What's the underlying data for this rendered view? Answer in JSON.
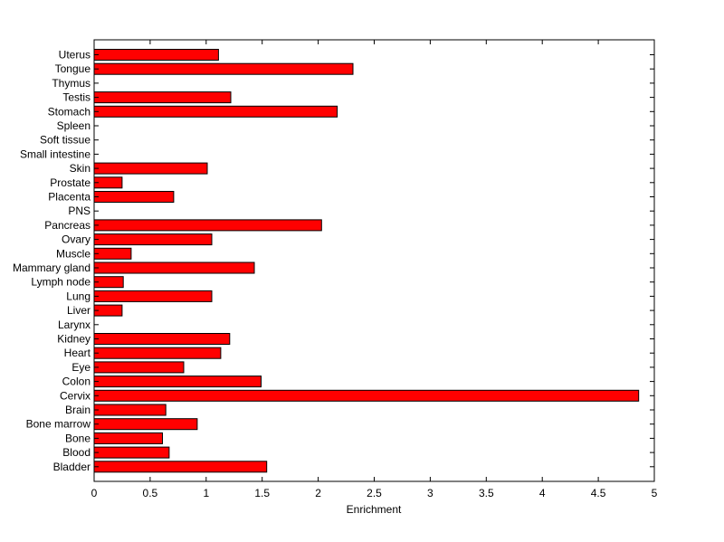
{
  "chart_data": {
    "type": "bar",
    "orientation": "horizontal",
    "title": "",
    "xlabel": "Enrichment",
    "ylabel": "",
    "xlim": [
      0,
      5
    ],
    "xticks": [
      "0",
      "0.5",
      "1",
      "1.5",
      "2",
      "2.5",
      "3",
      "3.5",
      "4",
      "4.5",
      "5"
    ],
    "grid": false,
    "legend": "none",
    "bar_color": "#ff0000",
    "bar_edge_color": "#000000",
    "categories": [
      "Uterus",
      "Tongue",
      "Thymus",
      "Testis",
      "Stomach",
      "Spleen",
      "Soft tissue",
      "Small intestine",
      "Skin",
      "Prostate",
      "Placenta",
      "PNS",
      "Pancreas",
      "Ovary",
      "Muscle",
      "Mammary gland",
      "Lymph node",
      "Lung",
      "Liver",
      "Larynx",
      "Kidney",
      "Heart",
      "Eye",
      "Colon",
      "Cervix",
      "Brain",
      "Bone marrow",
      "Bone",
      "Blood",
      "Bladder"
    ],
    "values": [
      1.11,
      2.31,
      0,
      1.22,
      2.17,
      0,
      0,
      0,
      1.01,
      0.25,
      0.71,
      0,
      2.03,
      1.05,
      0.33,
      1.43,
      0.26,
      1.05,
      0.25,
      0,
      1.21,
      1.13,
      0.8,
      1.49,
      4.86,
      0.64,
      0.92,
      0.61,
      0.67,
      1.54
    ]
  }
}
